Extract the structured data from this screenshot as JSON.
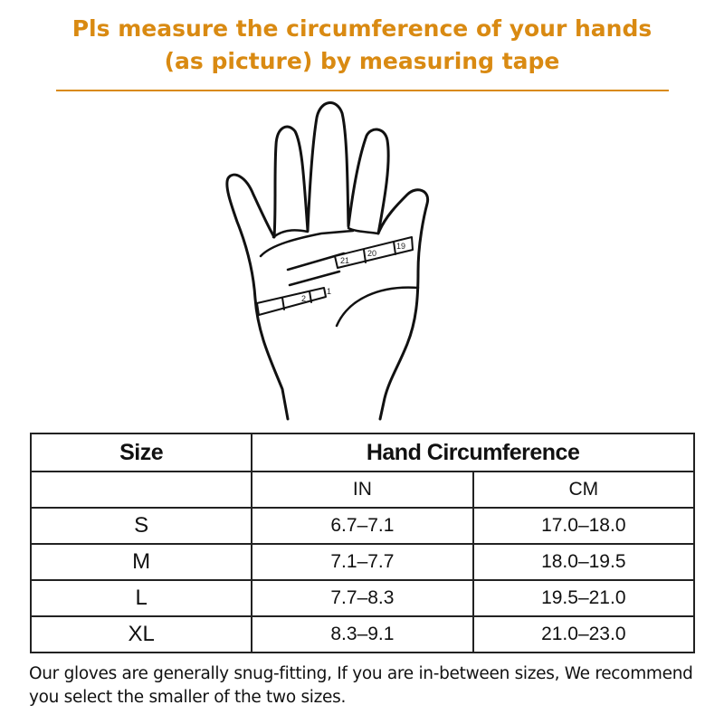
{
  "title": {
    "line1": "Pls measure the circumference of your hands",
    "line2": "(as picture) by measuring tape"
  },
  "accent_color": "#d98a12",
  "illustration": {
    "name": "hand-with-measuring-tape",
    "tape_labels": [
      "19",
      "20",
      "21",
      "1",
      "2"
    ]
  },
  "table": {
    "size_header": "Size",
    "circ_header": "Hand Circumference",
    "unit_in": "IN",
    "unit_cm": "CM",
    "rows": [
      {
        "size": "S",
        "in": "6.7–7.1",
        "cm": "17.0–18.0"
      },
      {
        "size": "M",
        "in": "7.1–7.7",
        "cm": "18.0–19.5"
      },
      {
        "size": "L",
        "in": "7.7–8.3",
        "cm": "19.5–21.0"
      },
      {
        "size": "XL",
        "in": "8.3–9.1",
        "cm": "21.0–23.0"
      }
    ]
  },
  "note": "Our gloves are generally snug-fitting, If you are in-between sizes, We recommend you select the smaller of the two sizes."
}
